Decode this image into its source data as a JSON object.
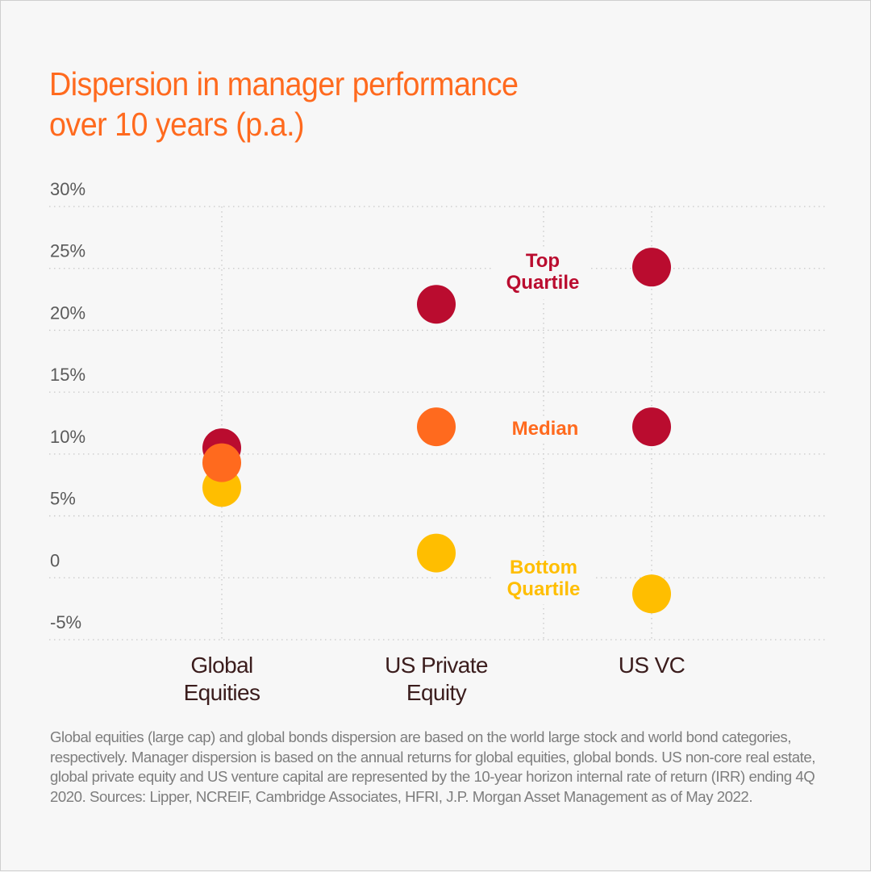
{
  "title_line1": "Dispersion in manager performance",
  "title_line2": "over 10 years (p.a.)",
  "footnote": "Global equities (large cap) and global bonds dispersion are based on the world large stock and world bond categories, respectively. Manager dispersion is based on the annual returns for global equities, global bonds. US non-core real estate, global private equity and US venture capital are represented by the 10-year horizon internal rate of return (IRR) ending 4Q 2020. Sources: Lipper, NCREIF, Cambridge Associates, HFRI, J.P. Morgan Asset Management as of May 2022.",
  "colors": {
    "background": "#f7f7f7",
    "title": "#ff6a1e",
    "top_quartile": "#ba0c2f",
    "median": "#ff6a1e",
    "bottom_quartile": "#ffbe00",
    "category_text": "#3b1d1d",
    "axis_text": "#5a5a5a",
    "grid": "#c8c8c8"
  },
  "chart_data": {
    "type": "scatter",
    "title": "Dispersion in manager performance over 10 years (p.a.)",
    "xlabel": "",
    "ylabel": "",
    "ylim": [
      -5,
      30
    ],
    "yticks": [
      30,
      25,
      20,
      15,
      10,
      5,
      0,
      -5
    ],
    "ytick_labels": [
      "30%",
      "25%",
      "20%",
      "15%",
      "10%",
      "5%",
      "0",
      "-5%"
    ],
    "grid": true,
    "categories": [
      {
        "key": "global_equities",
        "lines": [
          "Global",
          "Equities"
        ]
      },
      {
        "key": "us_private_equity",
        "lines": [
          "US Private",
          "Equity"
        ]
      },
      {
        "key": "us_vc",
        "lines": [
          "US VC"
        ]
      }
    ],
    "series": [
      {
        "name": "Top Quartile",
        "label_lines": [
          "Top",
          "Quartile"
        ],
        "color": "#ba0c2f",
        "values": [
          10.5,
          22.1,
          25.1
        ]
      },
      {
        "name": "Median",
        "label_lines": [
          "Median"
        ],
        "color": "#ff6a1e",
        "values": [
          9.3,
          12.2,
          12.2
        ],
        "point_colors": [
          "#ff6a1e",
          "#ff6a1e",
          "#ba0c2f"
        ]
      },
      {
        "name": "Bottom Quartile",
        "label_lines": [
          "Bottom",
          "Quartile"
        ],
        "color": "#ffbe00",
        "values": [
          7.3,
          2.0,
          -1.3
        ]
      }
    ],
    "legend": "inline-between-us-private-equity-and-us-vc"
  }
}
